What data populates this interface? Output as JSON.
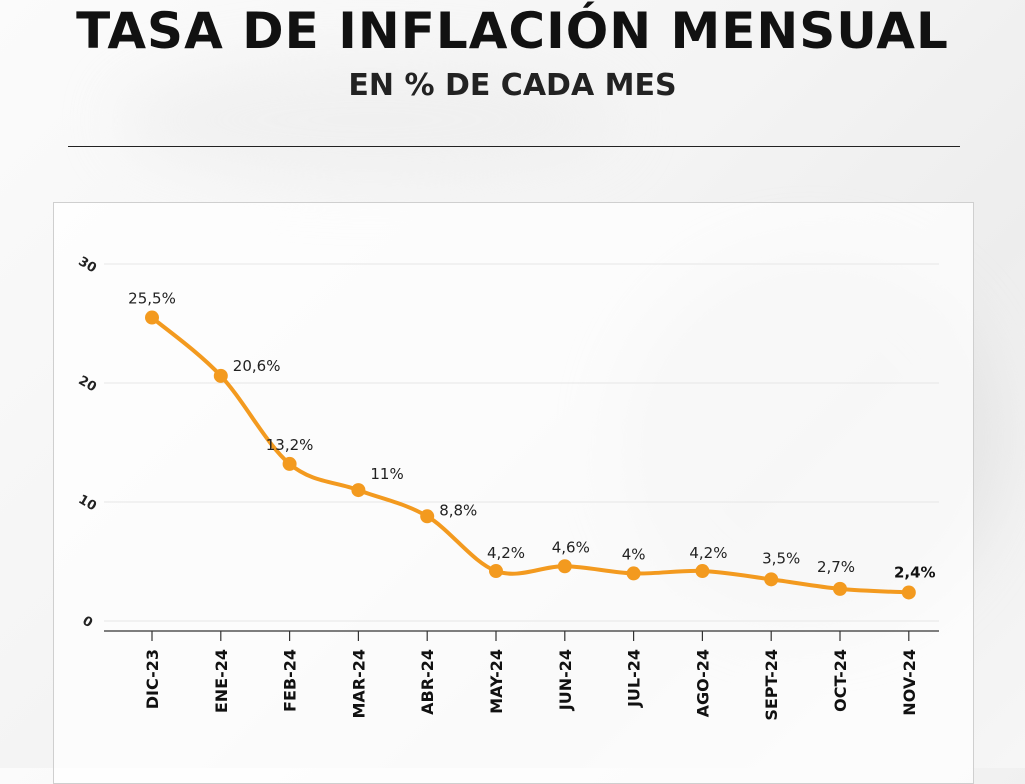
{
  "title": "TASA DE INFLACIÓN MENSUAL",
  "subtitle": "EN % DE CADA MES",
  "colors": {
    "line": "#F39A1F",
    "highlight": "#F39A1F",
    "text": "#111111"
  },
  "chart_data": {
    "type": "line",
    "categories": [
      "DIC-23",
      "ENE-24",
      "FEB-24",
      "MAR-24",
      "ABR-24",
      "MAY-24",
      "JUN-24",
      "JUL-24",
      "AGO-24",
      "SEPT-24",
      "OCT-24",
      "NOV-24"
    ],
    "values": [
      25.5,
      20.6,
      13.2,
      11,
      8.8,
      4.2,
      4.6,
      4,
      4.2,
      3.5,
      2.7,
      2.4
    ],
    "data_labels": [
      "25,5%",
      "20,6%",
      "13,2%",
      "11%",
      "8,8%",
      "4,2%",
      "4,6%",
      "4%",
      "4,2%",
      "3,5%",
      "2,7%",
      "2,4%"
    ],
    "yticks": [
      0,
      10,
      20,
      30
    ],
    "ylim": [
      0,
      30
    ],
    "grid": true,
    "highlight_category": "NOV-24"
  }
}
